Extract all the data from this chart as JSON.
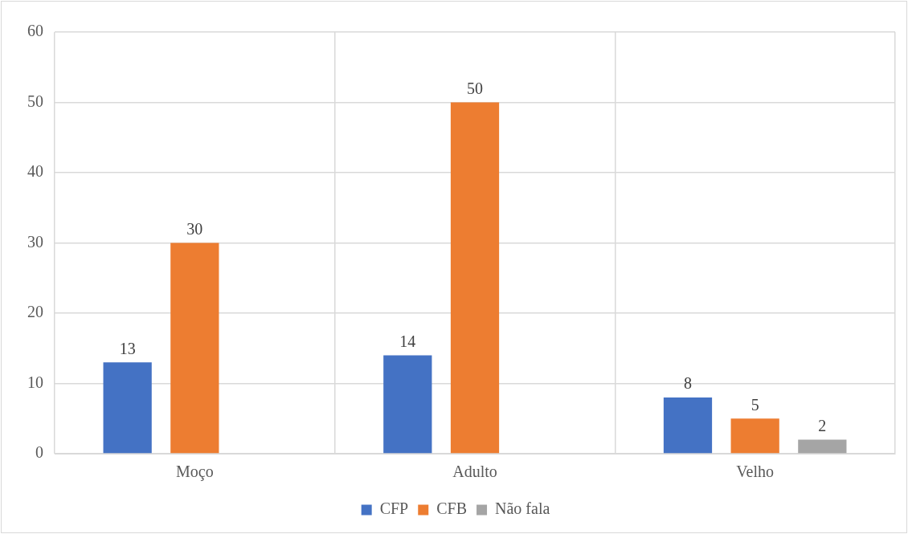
{
  "chart_data": {
    "type": "bar",
    "categories": [
      "Moço",
      "Adulto",
      "Velho"
    ],
    "series": [
      {
        "name": "CFP",
        "color": "#4472c4",
        "values": [
          13,
          14,
          8
        ]
      },
      {
        "name": "CFB",
        "color": "#ed7d31",
        "values": [
          30,
          50,
          5
        ]
      },
      {
        "name": "Não fala",
        "color": "#a5a5a5",
        "values": [
          null,
          null,
          2
        ]
      }
    ],
    "ylim": [
      0,
      60
    ],
    "yticks": [
      0,
      10,
      20,
      30,
      40,
      50,
      60
    ],
    "grid": true,
    "legend": "bottom",
    "data_labels": true
  }
}
